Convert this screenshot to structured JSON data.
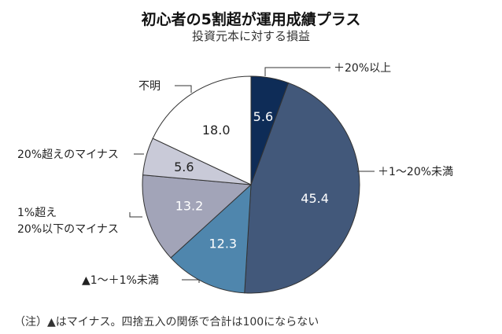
{
  "title": "初心者の5割超が運用成績プラス",
  "subtitle": "投資元本に対する損益",
  "note": "（注）▲はマイナス。四捨五入の関係で合計は100にならない",
  "chart_data": {
    "type": "pie",
    "start_angle_deg": 0,
    "direction": "clockwise",
    "slices": [
      {
        "label": "＋20%以上",
        "value": 5.6,
        "value_label": "5.6",
        "color": "#0e2c57",
        "text_color": "#ffffff"
      },
      {
        "label": "＋1～20%未満",
        "value": 45.4,
        "value_label": "45.4",
        "color": "#42587a",
        "text_color": "#ffffff"
      },
      {
        "label": "▲1～＋1%未満",
        "value": 12.3,
        "value_label": "12.3",
        "color": "#4f86ad",
        "text_color": "#ffffff"
      },
      {
        "label": [
          "1%超え",
          "20%以下のマイナス"
        ],
        "value": 13.2,
        "value_label": "13.2",
        "color": "#a2a4b8",
        "text_color": "#ffffff"
      },
      {
        "label": "20%超えのマイナス",
        "value": 5.6,
        "value_label": "5.6",
        "color": "#c9cad8",
        "text_color": "#222222"
      },
      {
        "label": "不明",
        "value": 18.0,
        "value_label": "18.0",
        "color": "#ffffff",
        "text_color": "#222222"
      }
    ]
  }
}
